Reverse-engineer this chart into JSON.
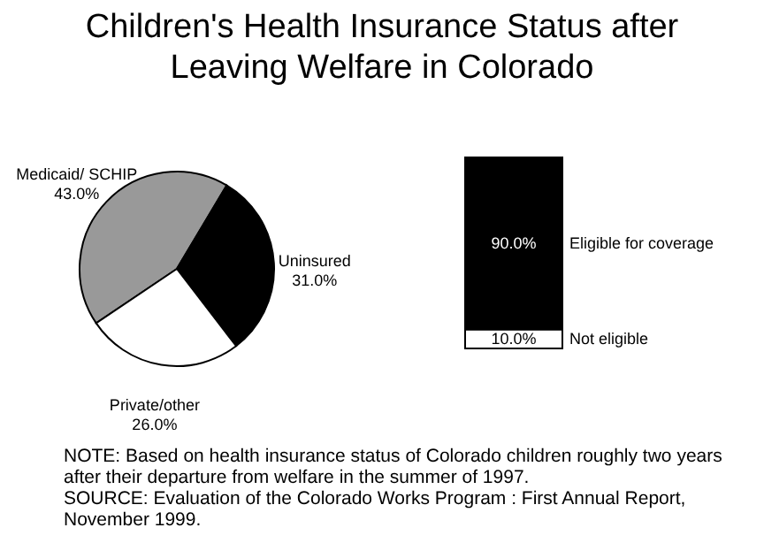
{
  "chart_data": [
    {
      "type": "pie",
      "title": "Children's Health Insurance Status after Leaving Welfare in Colorado",
      "categories": [
        "Medicaid/ SCHIP",
        "Uninsured",
        "Private/other"
      ],
      "values": [
        43.0,
        31.0,
        26.0
      ],
      "value_labels": [
        "43.0%",
        "31.0%",
        "26.0%"
      ],
      "colors": [
        "#999999",
        "#000000",
        "#ffffff"
      ],
      "legend": false,
      "annotations": [
        "NOTE: Based on health insurance status of Colorado children roughly two years after their departure from welfare in the summer of 1997.",
        "SOURCE: Evaluation of the Colorado Works Program : First Annual Report, November 1999."
      ]
    },
    {
      "type": "bar",
      "stacked": true,
      "categories": [
        null
      ],
      "tick_labels": false,
      "legend": false,
      "series": [
        {
          "name": "Not eligible",
          "color": "#ffffff",
          "values": [
            10.0
          ],
          "value_labels": [
            "10.0%"
          ]
        },
        {
          "name": "Eligible for coverage",
          "color": "#000000",
          "values": [
            90.0
          ],
          "value_labels": [
            "90.0%"
          ]
        }
      ]
    }
  ]
}
